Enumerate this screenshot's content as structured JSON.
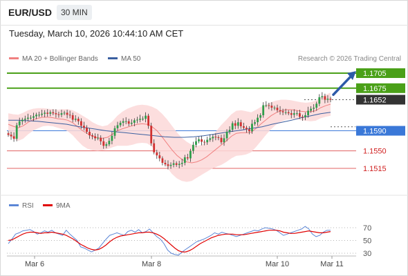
{
  "header": {
    "pair": "EUR/USD",
    "timeframe": "30 MIN"
  },
  "timestamp": "Tuesday, March 10, 2026 10:44:10 AM CET",
  "legend": {
    "ma20": {
      "label": "MA 20 + Bollinger Bands",
      "color": "#f08080"
    },
    "ma50": {
      "label": "MA 50",
      "color": "#3a5fa0"
    },
    "source": "Research © 2026 Trading Central"
  },
  "rsi_legend": {
    "rsi": {
      "label": "RSI",
      "color": "#5b86d6"
    },
    "ma9": {
      "label": "9MA",
      "color": "#e00000"
    }
  },
  "chart_data": [
    {
      "type": "candlestick",
      "ylim": [
        1.5045,
        1.1765
      ],
      "levels": [
        {
          "value": 1.1705,
          "label": "1.1705",
          "kind": "resistance",
          "color": "#4aa018"
        },
        {
          "value": 1.1675,
          "label": "1.1675",
          "kind": "resistance",
          "color": "#4aa018"
        },
        {
          "value": 1.1652,
          "label": "1.1652",
          "kind": "last",
          "color": "#333333"
        },
        {
          "value": 1.159,
          "label": "1.1590",
          "kind": "pivot",
          "color": "#3a78d8"
        },
        {
          "value": 1.155,
          "label": "1.1550",
          "kind": "support",
          "color": "#e06060"
        },
        {
          "value": 1.1515,
          "label": "1.1515",
          "kind": "support",
          "color": "#e06060"
        }
      ],
      "close_path": [
        1.1582,
        1.1579,
        1.1574,
        1.1601,
        1.1609,
        1.1612,
        1.1614,
        1.1616,
        1.1616,
        1.1619,
        1.1622,
        1.1622,
        1.1624,
        1.1626,
        1.1624,
        1.1627,
        1.1625,
        1.1623,
        1.1622,
        1.1625,
        1.1626,
        1.1622,
        1.1621,
        1.1612,
        1.1614,
        1.1609,
        1.16,
        1.1596,
        1.1588,
        1.1581,
        1.1579,
        1.1575,
        1.1576,
        1.1569,
        1.156,
        1.1563,
        1.157,
        1.158,
        1.1595,
        1.1601,
        1.1606,
        1.1609,
        1.1609,
        1.1604,
        1.1606,
        1.1611,
        1.1612,
        1.1614,
        1.1614,
        1.162,
        1.16,
        1.1565,
        1.1547,
        1.1541,
        1.1535,
        1.1526,
        1.1523,
        1.152,
        1.1522,
        1.1525,
        1.1522,
        1.1524,
        1.1526,
        1.1537,
        1.1535,
        1.155,
        1.1562,
        1.1569,
        1.1573,
        1.1568,
        1.1567,
        1.1572,
        1.1575,
        1.1578,
        1.1577,
        1.1576,
        1.1567,
        1.1575,
        1.1588,
        1.1592,
        1.1605,
        1.16,
        1.1607,
        1.1599,
        1.1596,
        1.1593,
        1.1589,
        1.1604,
        1.1607,
        1.1616,
        1.1621,
        1.1641,
        1.1641,
        1.164,
        1.1636,
        1.1636,
        1.1631,
        1.1629,
        1.1627,
        1.1627,
        1.1625,
        1.1622,
        1.1625,
        1.1625,
        1.1618,
        1.1617,
        1.1621,
        1.163,
        1.1634,
        1.1636,
        1.1644,
        1.1657,
        1.1659,
        1.1652,
        1.1654,
        1.1652
      ],
      "ma20": [
        1.1603,
        1.1599,
        1.1596,
        1.16,
        1.1607,
        1.1612,
        1.1615,
        1.1617,
        1.1617,
        1.1616,
        1.1614,
        1.1613,
        1.1611,
        1.1606,
        1.1598,
        1.159,
        1.1584,
        1.1579,
        1.1576,
        1.1575,
        1.1577,
        1.1583,
        1.159,
        1.1594,
        1.1597,
        1.16,
        1.1603,
        1.1604,
        1.1603,
        1.1598,
        1.159,
        1.1578,
        1.1565,
        1.1552,
        1.1541,
        1.1533,
        1.1528,
        1.1526,
        1.1528,
        1.1532,
        1.1538,
        1.1546,
        1.1554,
        1.1562,
        1.157,
        1.1579,
        1.1585,
        1.1586,
        1.1586,
        1.1587,
        1.1595,
        1.1604,
        1.1612,
        1.162,
        1.1626,
        1.163,
        1.1632,
        1.1632,
        1.1631,
        1.1629,
        1.1628,
        1.1628,
        1.163,
        1.1636,
        1.164,
        1.1643
      ],
      "ma50": [
        1.1611,
        1.1611,
        1.161,
        1.1609,
        1.1607,
        1.1605,
        1.1603,
        1.1599,
        1.1596,
        1.1593,
        1.159,
        1.1588,
        1.1586,
        1.1584,
        1.1582,
        1.158,
        1.1578,
        1.1577,
        1.1577,
        1.1578,
        1.158,
        1.1583,
        1.1586,
        1.1589,
        1.1592,
        1.1595,
        1.1598,
        1.1603,
        1.1607,
        1.1611,
        1.1616,
        1.162,
        1.1624,
        1.1627
      ],
      "forecast_arrow": {
        "from": 1.1662,
        "to": 1.1705
      },
      "x_ticks": [
        "Mar 6",
        "Mar 8",
        "Mar 10",
        "Mar 11"
      ]
    },
    {
      "type": "line",
      "title": "RSI",
      "ylim": [
        20,
        80
      ],
      "y_ticks": [
        70,
        50,
        30
      ],
      "series": [
        {
          "name": "RSI",
          "color": "#5b86d6",
          "values": [
            45,
            52,
            60,
            62,
            65,
            66,
            67,
            64,
            60,
            62,
            65,
            63,
            66,
            62,
            60,
            58,
            66,
            60,
            55,
            50,
            40,
            38,
            35,
            32,
            35,
            38,
            45,
            52,
            58,
            60,
            62,
            60,
            58,
            64,
            66,
            63,
            67,
            62,
            64,
            68,
            62,
            56,
            52,
            45,
            35,
            30,
            28,
            27,
            32,
            36,
            40,
            44,
            48,
            50,
            52,
            55,
            58,
            62,
            60,
            63,
            61,
            60,
            58,
            56,
            58,
            60,
            62,
            64,
            66,
            65,
            68,
            70,
            69,
            68,
            66,
            62,
            58,
            60,
            62,
            64,
            66,
            68,
            72,
            68,
            60,
            56,
            58,
            63,
            66,
            66
          ]
        },
        {
          "name": "9MA",
          "color": "#e00000",
          "values": [
            50,
            51,
            54,
            57,
            60,
            62,
            63,
            63,
            62,
            61,
            62,
            62,
            63,
            62,
            61,
            60,
            58,
            55,
            52,
            48,
            44,
            41,
            38,
            36,
            35,
            36,
            39,
            43,
            48,
            52,
            55,
            57,
            58,
            59,
            60,
            61,
            62,
            62,
            63,
            63,
            62,
            60,
            57,
            53,
            48,
            43,
            38,
            34,
            32,
            32,
            34,
            37,
            41,
            45,
            48,
            51,
            54,
            56,
            58,
            59,
            60,
            60,
            60,
            59,
            59,
            59,
            60,
            61,
            62,
            63,
            64,
            65,
            66,
            66,
            66,
            65,
            63,
            62,
            61,
            61,
            62,
            63,
            64,
            65,
            64,
            63,
            62,
            62,
            63,
            64
          ]
        }
      ],
      "x_ticks": [
        "Mar 6",
        "Mar 8",
        "Mar 10",
        "Mar 11"
      ]
    }
  ]
}
